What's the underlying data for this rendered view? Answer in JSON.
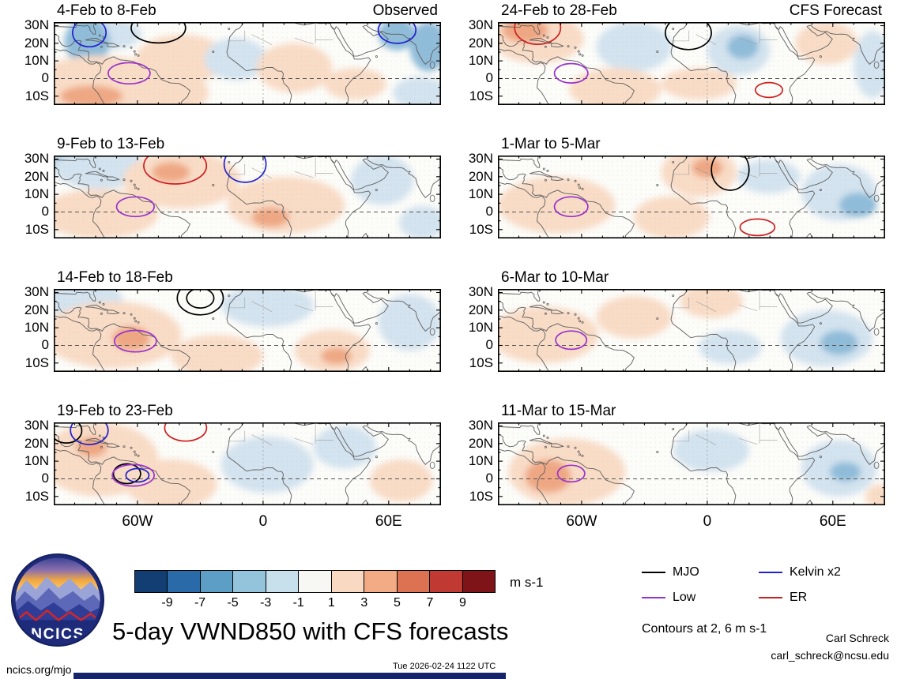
{
  "chart_data": {
    "type": "map-panel-grid",
    "title": "5-day VWND850 with CFS forecasts",
    "contours_note": "Contours at 2, 6 m s-1",
    "columns": [
      {
        "label": "Observed"
      },
      {
        "label": "CFS Forecast"
      }
    ],
    "axes": {
      "y_ticks": [
        "30N",
        "20N",
        "10N",
        "0",
        "10S"
      ],
      "y_lats": [
        30,
        20,
        10,
        0,
        -10
      ],
      "x_ticks": [
        "60W",
        "0",
        "60E"
      ],
      "x_lons": [
        -60,
        0,
        60
      ],
      "lon_range": [
        -100,
        85
      ],
      "lat_range": [
        -15,
        32
      ]
    },
    "colorbar": {
      "tick_labels": [
        "-9",
        "-7",
        "-5",
        "-3",
        "-1",
        "1",
        "3",
        "5",
        "7",
        "9"
      ],
      "colors": [
        "#123e73",
        "#2b6aa8",
        "#5d9ec6",
        "#94c4dc",
        "#c8dfec",
        "#f7f7f4",
        "#f9d9c2",
        "#f2ab85",
        "#dd7253",
        "#c03a33",
        "#7e1418"
      ],
      "units_label": "m s-1"
    },
    "legend": {
      "items": [
        {
          "label": "MJO",
          "color": "#000000"
        },
        {
          "label": "Kelvin x2",
          "color": "#2222cc"
        },
        {
          "label": "Low",
          "color": "#9933cc"
        },
        {
          "label": "ER",
          "color": "#cc2020"
        }
      ]
    },
    "shade_colors": {
      "p1": "#f9dcc6",
      "p2": "#efa783",
      "n1": "#d3e3ef",
      "n2": "#8fbcd9"
    },
    "contour_colors": {
      "MJO": "#000000",
      "Low": "#9933cc",
      "Kelvin": "#2222cc",
      "ER": "#cc2020"
    },
    "panels": [
      {
        "title": "4-Feb to 8-Feb",
        "corner_label": "Observed",
        "col": 0,
        "row": 0,
        "shading": [
          [
            "n1",
            -76,
            25,
            18,
            9
          ],
          [
            "n2",
            -84,
            21,
            11,
            13
          ],
          [
            "p1",
            -78,
            -3,
            33,
            16
          ],
          [
            "p2",
            -82,
            -10,
            15,
            6
          ],
          [
            "p1",
            -39,
            11,
            22,
            14
          ],
          [
            "p1",
            -44,
            -8,
            18,
            12
          ],
          [
            "n1",
            -13,
            11,
            15,
            12
          ],
          [
            "p1",
            15,
            6,
            18,
            14
          ],
          [
            "p1",
            44,
            -3,
            15,
            9
          ],
          [
            "n2",
            64,
            25,
            9,
            9
          ],
          [
            "n2",
            79,
            18,
            9,
            14
          ],
          [
            "n1",
            75,
            -8,
            13,
            9
          ]
        ],
        "contours": [
          [
            "MJO",
            -50,
            28.7,
            13,
            8.5
          ],
          [
            "Kelvin",
            -83,
            26,
            8,
            8
          ],
          [
            "Kelvin",
            64,
            27.5,
            9,
            7.5
          ],
          [
            "Low",
            -64,
            3,
            10,
            6
          ]
        ]
      },
      {
        "title": "24-Feb to 28-Feb",
        "corner_label": "CFS Forecast",
        "col": 1,
        "row": 0,
        "shading": [
          [
            "p1",
            -81,
            22.6,
            22,
            14
          ],
          [
            "p2",
            -87,
            27.3,
            11,
            7
          ],
          [
            "n1",
            -35,
            18,
            18,
            14
          ],
          [
            "n1",
            15,
            16,
            15,
            14
          ],
          [
            "n2",
            17,
            18,
            7.5,
            7
          ],
          [
            "n1",
            79,
            8,
            9,
            19
          ],
          [
            "p1",
            -44,
            -6,
            22,
            12
          ],
          [
            "p1",
            -4,
            -3,
            18,
            9
          ],
          [
            "p1",
            57,
            20,
            15,
            12
          ]
        ],
        "contours": [
          [
            "ER",
            -81,
            28.9,
            11,
            9.5
          ],
          [
            "MJO",
            -9,
            25.9,
            11,
            9.5
          ],
          [
            "Low",
            -65,
            3,
            8,
            5.5
          ],
          [
            "ER",
            29.5,
            -6.5,
            6.5,
            4.2
          ]
        ]
      },
      {
        "title": "9-Feb to 13-Feb",
        "corner_label": "",
        "col": 0,
        "row": 1,
        "shading": [
          [
            "n2",
            -90,
            27,
            11,
            9.5
          ],
          [
            "n1",
            -78,
            25,
            22,
            12
          ],
          [
            "p1",
            -39,
            18,
            28,
            16
          ],
          [
            "p2",
            -44,
            22.6,
            9,
            5.6
          ],
          [
            "p1",
            -78,
            -1,
            28,
            14
          ],
          [
            "p1",
            11,
            4,
            28,
            16
          ],
          [
            "p2",
            3.6,
            -3,
            9,
            5.6
          ],
          [
            "n1",
            57,
            18,
            15,
            14
          ],
          [
            "n1",
            76,
            -6,
            11,
            9.5
          ]
        ],
        "contours": [
          [
            "ER",
            -42,
            26.2,
            15,
            10.3
          ],
          [
            "Kelvin",
            -8.6,
            27.1,
            10,
            10.3
          ],
          [
            "Low",
            -61,
            3,
            9,
            5.6
          ]
        ]
      },
      {
        "title": "1-Mar to 5-Mar",
        "corner_label": "",
        "col": 1,
        "row": 1,
        "shading": [
          [
            "p1",
            -4,
            22.6,
            18,
            14
          ],
          [
            "p2",
            0,
            25,
            7.4,
            5.6
          ],
          [
            "p1",
            -72,
            4,
            28,
            16
          ],
          [
            "p1",
            -17,
            -3,
            18,
            12
          ],
          [
            "n1",
            63,
            11,
            18,
            16
          ],
          [
            "n2",
            72,
            4,
            9,
            7
          ],
          [
            "n1",
            29.5,
            20,
            15,
            9.5
          ]
        ],
        "contours": [
          [
            "MJO",
            11,
            24,
            9,
            11.7
          ],
          [
            "Low",
            -65,
            3,
            8,
            5.6
          ],
          [
            "ER",
            24,
            -8.7,
            8.3,
            4.7
          ]
        ]
      },
      {
        "title": "14-Feb to 18-Feb",
        "corner_label": "",
        "col": 0,
        "row": 2,
        "shading": [
          [
            "n1",
            -85,
            25,
            18,
            12
          ],
          [
            "n1",
            2,
            22.6,
            22,
            12
          ],
          [
            "p1",
            -72,
            6,
            33,
            19
          ],
          [
            "p2",
            -63,
            4,
            9,
            7
          ],
          [
            "p1",
            -22,
            -6,
            22,
            12
          ],
          [
            "p1",
            33,
            -3,
            18,
            12
          ],
          [
            "p2",
            35,
            -6,
            7.4,
            4.7
          ],
          [
            "n1",
            70,
            13,
            15,
            16
          ]
        ],
        "contours": [
          [
            "MJO",
            -30,
            26.8,
            11,
            9.5
          ],
          [
            "MJO",
            -30,
            26.8,
            6.5,
            5.6
          ],
          [
            "Low",
            -61,
            2.4,
            10,
            6.1
          ]
        ]
      },
      {
        "title": "6-Mar to 10-Mar",
        "corner_label": "",
        "col": 1,
        "row": 2,
        "shading": [
          [
            "p1",
            -78,
            6,
            26,
            16
          ],
          [
            "p1",
            -35,
            16,
            18,
            12
          ],
          [
            "p1",
            2,
            25,
            15,
            9.5
          ],
          [
            "n1",
            57,
            4,
            22,
            16
          ],
          [
            "n2",
            63,
            1.5,
            9,
            7
          ],
          [
            "n1",
            11,
            -1,
            15,
            9.5
          ]
        ],
        "contours": [
          [
            "Low",
            -65,
            3,
            7.4,
            5.2
          ]
        ]
      },
      {
        "title": "19-Feb to 23-Feb",
        "corner_label": "",
        "col": 0,
        "row": 3,
        "shading": [
          [
            "p1",
            -78,
            11,
            28,
            21
          ],
          [
            "p2",
            -82,
            18,
            7.4,
            5.6
          ],
          [
            "p1",
            -44,
            -3,
            22,
            14
          ],
          [
            "n1",
            2,
            8,
            22,
            16
          ],
          [
            "n1",
            39,
            18,
            15,
            12
          ],
          [
            "p1",
            66,
            -1,
            15,
            12
          ]
        ],
        "contours": [
          [
            "MJO",
            -94,
            27.3,
            7.4,
            7
          ],
          [
            "Kelvin",
            -83,
            27.5,
            9,
            8
          ],
          [
            "ER",
            -37,
            28.9,
            10,
            7.5
          ],
          [
            "MJO",
            -65,
            2.9,
            6.5,
            5.6
          ],
          [
            "Low",
            -62,
            2,
            10,
            6.1
          ],
          [
            "Kelvin",
            -60,
            2,
            5.5,
            3.8
          ]
        ]
      },
      {
        "title": "11-Mar to 15-Mar",
        "corner_label": "",
        "col": 1,
        "row": 3,
        "shading": [
          [
            "p1",
            -67,
            4,
            28,
            19
          ],
          [
            "p2",
            -76,
            1.5,
            11,
            9.5
          ],
          [
            "n1",
            2,
            16,
            18,
            12
          ],
          [
            "n1",
            63,
            6,
            18,
            16
          ],
          [
            "n2",
            66,
            4,
            7.4,
            5.6
          ],
          [
            "p1",
            83,
            -10,
            7.4,
            7
          ]
        ],
        "contours": [
          [
            "Low",
            -65,
            3,
            6.5,
            4.7
          ]
        ]
      }
    ]
  },
  "branding": {
    "logo_text": "NCICS"
  },
  "credits": {
    "author": "Carl Schreck",
    "email": "carl_schreck@ncsu.edu"
  },
  "footer": {
    "site": "ncics.org/mjo",
    "timestamp": "Tue 2026-02-24 1122 UTC"
  }
}
